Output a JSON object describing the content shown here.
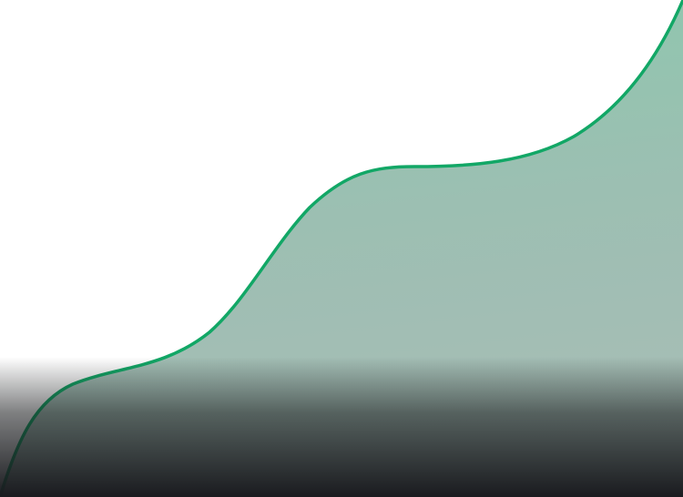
{
  "colors": {
    "background": "#ffffff",
    "curve_stroke": "#12a766",
    "area_fill_top": "#8cc8ad",
    "area_fill_mid": "#9cbfb2",
    "area_fill_low": "#a8bdb6",
    "fade_top": "rgba(0,0,0,0)",
    "fade_mid": "rgba(20,22,24,0.55)",
    "fade_bottom": "#1a1b1f"
  },
  "graphic": {
    "description_name": "rising-wave-area",
    "fade_overlay": true
  }
}
